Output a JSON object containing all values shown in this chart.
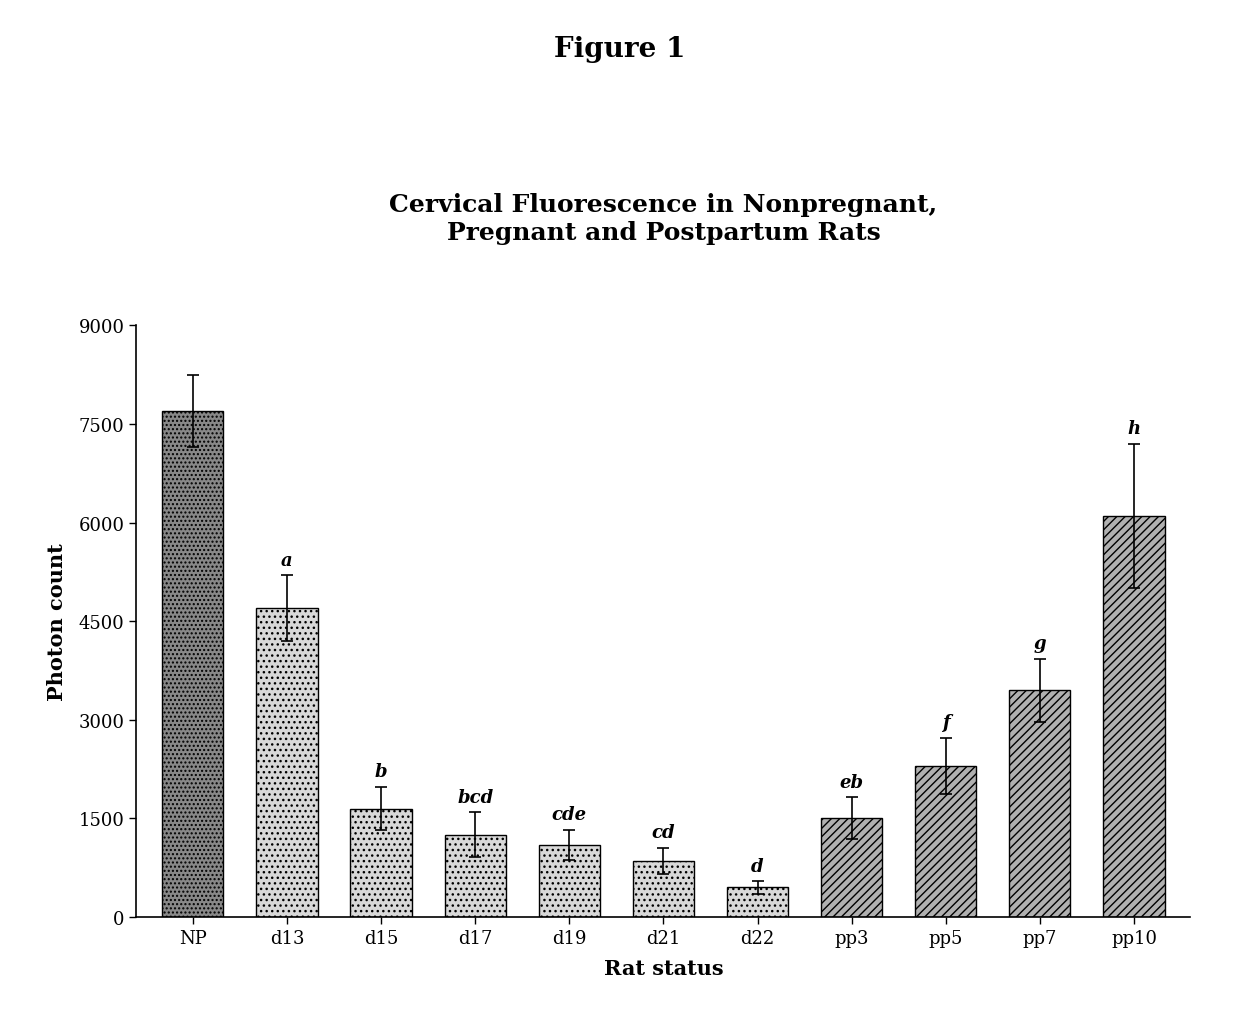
{
  "title": "Cervical Fluorescence in Nonpregnant,\nPregnant and Postpartum Rats",
  "figure_title": "Figure 1",
  "xlabel": "Rat status",
  "ylabel": "Photon count",
  "categories": [
    "NP",
    "d13",
    "d15",
    "d17",
    "d19",
    "d21",
    "d22",
    "pp3",
    "pp5",
    "pp7",
    "pp10"
  ],
  "values": [
    7700,
    4700,
    1650,
    1250,
    1100,
    850,
    450,
    1500,
    2300,
    3450,
    6100
  ],
  "errors": [
    550,
    500,
    330,
    340,
    230,
    200,
    95,
    320,
    430,
    480,
    1100
  ],
  "labels": [
    "",
    "a",
    "b",
    "bcd",
    "cde",
    "cd",
    "d",
    "eb",
    "f",
    "g",
    "h"
  ],
  "ylim": [
    0,
    9000
  ],
  "yticks": [
    0,
    1500,
    3000,
    4500,
    6000,
    7500,
    9000
  ],
  "background_color": "#ffffff",
  "bar_facecolors": [
    "#888888",
    "#d8d8d8",
    "#d8d8d8",
    "#d8d8d8",
    "#d8d8d8",
    "#d8d8d8",
    "#d8d8d8",
    "#b0b0b0",
    "#b0b0b0",
    "#b0b0b0",
    "#b0b0b0"
  ],
  "bar_hatches": [
    "....",
    "...",
    "...",
    "...",
    "...",
    "...",
    "...",
    "////",
    "////",
    "////",
    "////"
  ],
  "bar_width": 0.65
}
